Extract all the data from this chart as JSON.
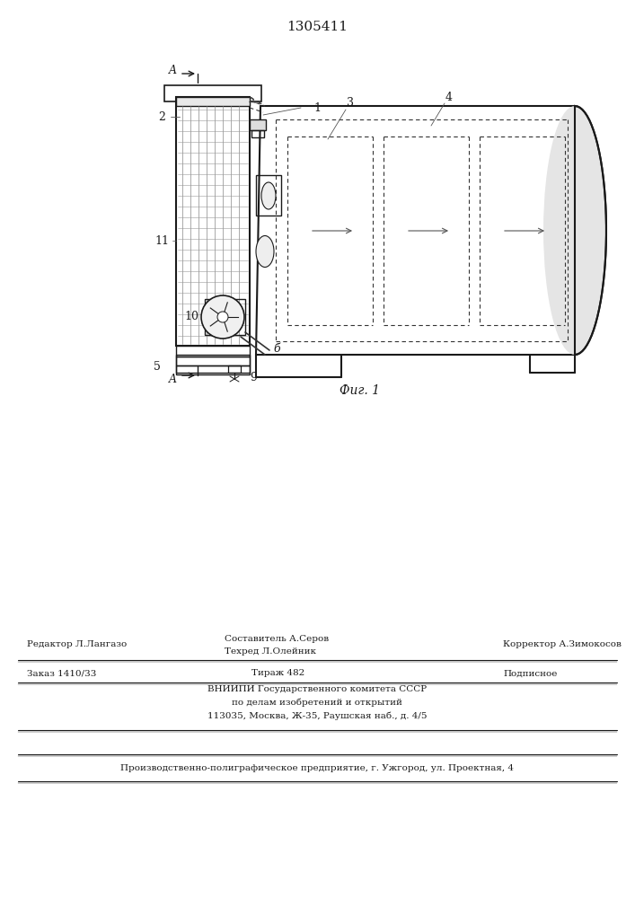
{
  "patent_number": "1305411",
  "fig_caption": "Фиг. 1",
  "background_color": "#ffffff",
  "line_color": "#1a1a1a",
  "footer_line1_left": "Редактор Л.Лангазо",
  "footer_line1_center1": "Составитель А.Серов",
  "footer_line1_center2": "Техред Л.Олейник",
  "footer_line1_right": "Корректор А.Зимокосов",
  "footer_line2_left": "Заказ 1410/33",
  "footer_line2_center": "Тираж 482",
  "footer_line2_right": "Подписное",
  "footer_line3": "ВНИИПИ Государственного комитета СССР",
  "footer_line4": "по делам изобретений и открытий",
  "footer_line5": "113035, Москва, Ж-35, Раушская наб., д. 4/5",
  "footer_last": "Производственно-полиграфическое предприятие, г. Ужгород, ул. Проектная, 4"
}
